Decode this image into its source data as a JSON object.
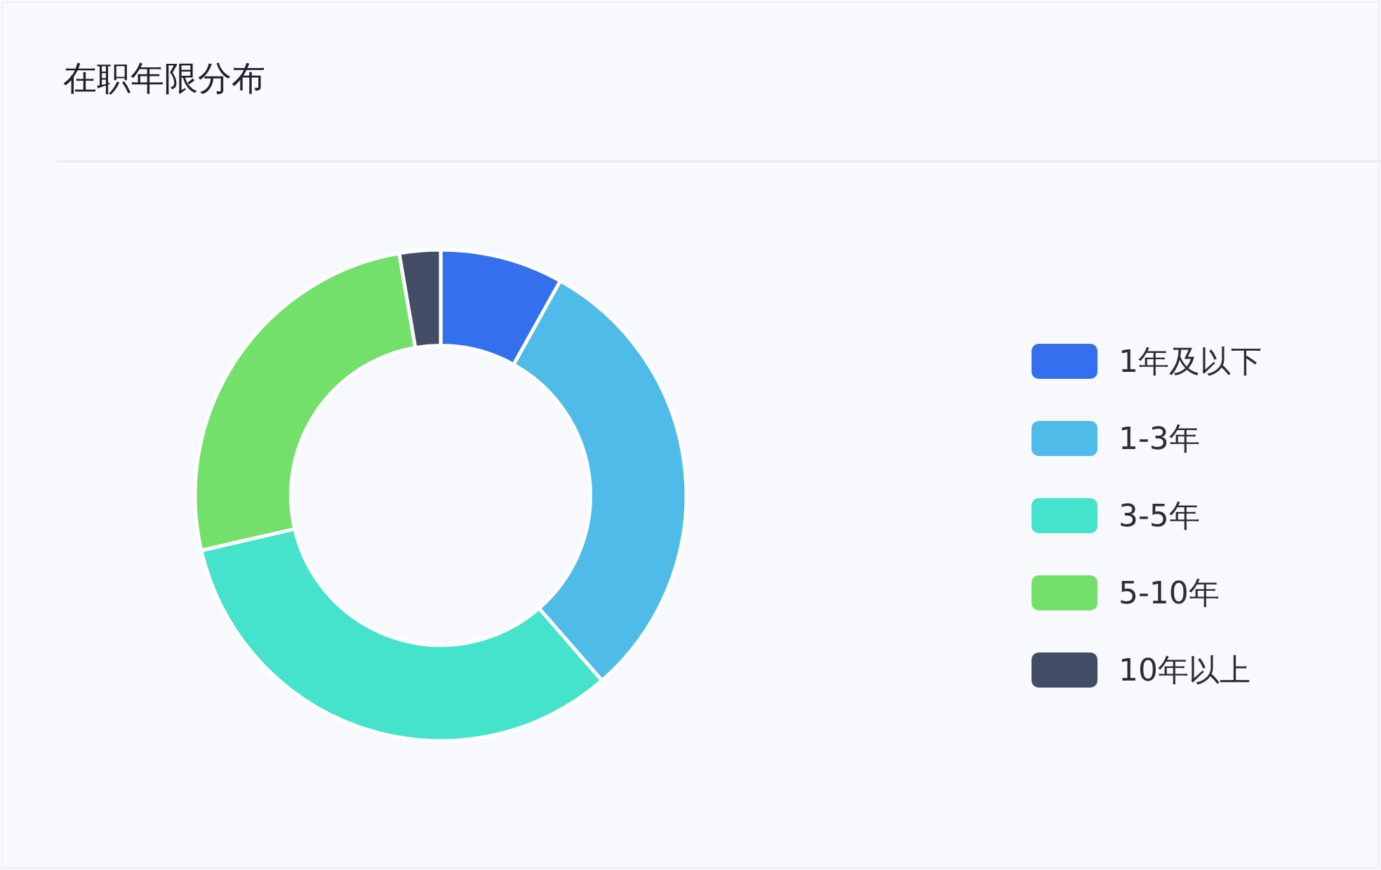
{
  "chart_data": {
    "type": "donut",
    "title": "在职年限分布",
    "categories": [
      "1年及以下",
      "1-3年",
      "3-5年",
      "5-10年",
      "10年以上"
    ],
    "values": [
      8.1,
      30.5,
      32.8,
      25.9,
      2.7
    ],
    "colors": [
      "#3470ee",
      "#4fbbe8",
      "#45e2cc",
      "#74e06c",
      "#434d66"
    ],
    "legend": "right"
  }
}
